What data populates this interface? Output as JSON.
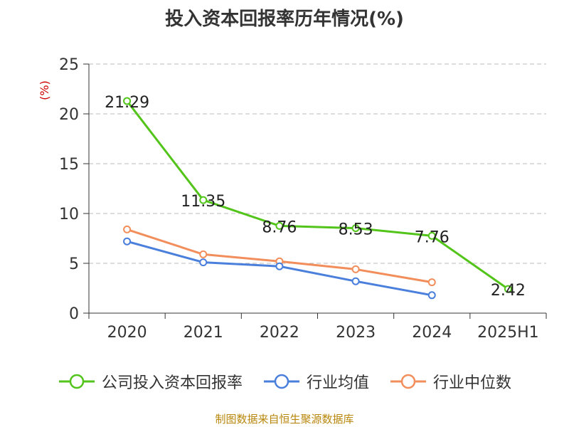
{
  "title": "投入资本回报率历年情况(%)",
  "source_note": "制图数据来自恒生聚源数据库",
  "chart_data": {
    "type": "line",
    "title": "投入资本回报率历年情况(%)",
    "ylabel": "(%)",
    "xlabel": "",
    "categories": [
      "2020",
      "2021",
      "2022",
      "2023",
      "2024",
      "2025H1"
    ],
    "ylim": [
      0,
      25
    ],
    "yticks": [
      0,
      5,
      10,
      15,
      20,
      25
    ],
    "grid": true,
    "legend_position": "bottom",
    "series": [
      {
        "name": "公司投入资本回报率",
        "color": "#52c41a",
        "values": [
          21.29,
          11.35,
          8.76,
          8.53,
          7.76,
          2.42
        ],
        "labels": [
          "21.29",
          "11.35",
          "8.76",
          "8.53",
          "7.76",
          "2.42"
        ]
      },
      {
        "name": "行业均值",
        "color": "#4a7fdc",
        "values": [
          7.2,
          5.1,
          4.7,
          3.2,
          1.8,
          null
        ]
      },
      {
        "name": "行业中位数",
        "color": "#f28e5b",
        "values": [
          8.4,
          5.9,
          5.2,
          4.4,
          3.1,
          null
        ]
      }
    ]
  }
}
